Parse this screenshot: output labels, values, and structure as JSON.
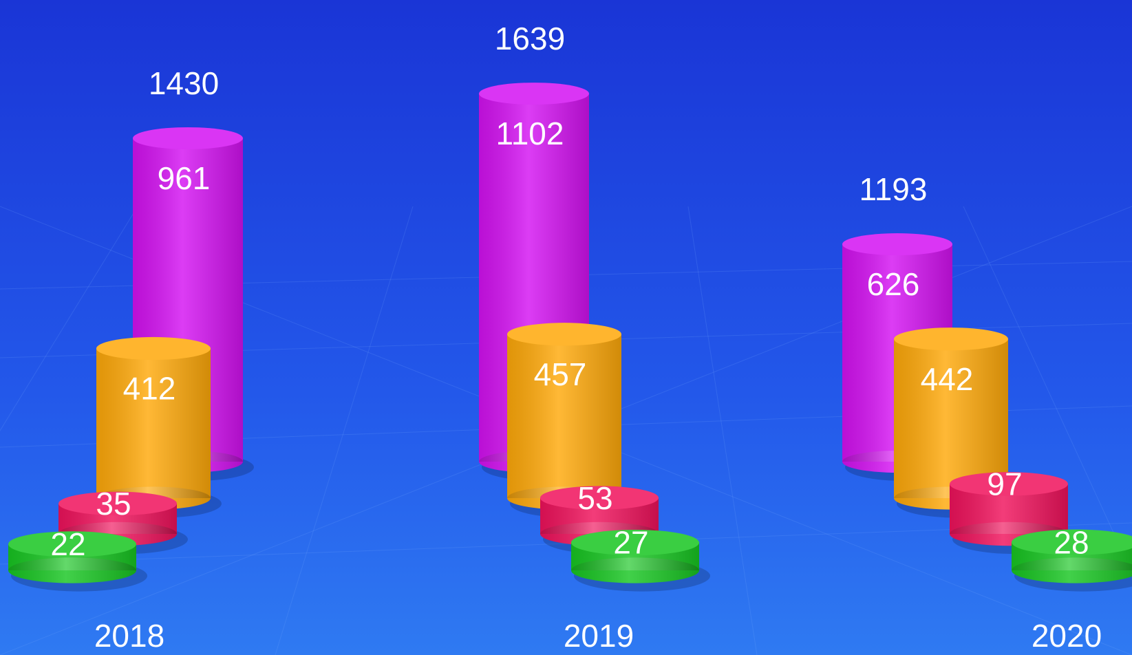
{
  "chart_data": {
    "type": "bar",
    "categories": [
      "2018",
      "2019",
      "2020"
    ],
    "totals": [
      1430,
      1639,
      1193
    ],
    "series": [
      {
        "color": "#d412f2",
        "values": [
          961,
          1102,
          626
        ]
      },
      {
        "color": "#ffa90a",
        "values": [
          412,
          457,
          442
        ]
      },
      {
        "color": "#f0125c",
        "values": [
          35,
          53,
          97
        ]
      },
      {
        "color": "#18c622",
        "values": [
          22,
          27,
          28
        ]
      }
    ]
  }
}
